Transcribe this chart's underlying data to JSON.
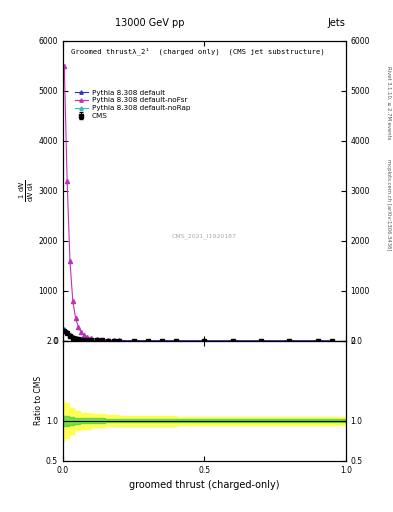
{
  "title_top": "13000 GeV pp",
  "title_right": "Jets",
  "inner_title": "Groomed thrustλ_2¹  (charged only)  (CMS jet substructure)",
  "watermark": "CMS_2021_I1920187",
  "xlabel": "groomed thrust (charged-only)",
  "ylabel_ratio": "Ratio to CMS",
  "right_label_top": "Rivet 3.1.10, ≥ 2.7M events",
  "right_label_bot": "mcplots.cern.ch [arXiv:1306.3436]",
  "legend": [
    {
      "label": "CMS",
      "color": "black",
      "marker": "s",
      "linestyle": "none"
    },
    {
      "label": "Pythia 8.308 default",
      "color": "#3333bb",
      "marker": "^",
      "linestyle": "-"
    },
    {
      "label": "Pythia 8.308 default-noFsr",
      "color": "#bb33bb",
      "marker": "^",
      "linestyle": "-"
    },
    {
      "label": "Pythia 8.308 default-noRap",
      "color": "#33bbbb",
      "marker": "^",
      "linestyle": "-"
    }
  ],
  "main_xdata": [
    0.005,
    0.015,
    0.025,
    0.035,
    0.045,
    0.055,
    0.065,
    0.075,
    0.085,
    0.1,
    0.12,
    0.14,
    0.16,
    0.18,
    0.2,
    0.25,
    0.3,
    0.35,
    0.4,
    0.5,
    0.6,
    0.7,
    0.8,
    0.9,
    0.95
  ],
  "cms_y": [
    200,
    160,
    100,
    65,
    45,
    35,
    26,
    20,
    16,
    13,
    9.5,
    7.5,
    6.0,
    4.8,
    3.9,
    2.7,
    1.9,
    1.4,
    1.0,
    0.55,
    0.25,
    0.1,
    0.04,
    0.01,
    0.005
  ],
  "cms_yerr": [
    12,
    9,
    6,
    4,
    3,
    2.2,
    1.7,
    1.3,
    1.0,
    0.8,
    0.6,
    0.5,
    0.4,
    0.3,
    0.25,
    0.18,
    0.13,
    0.09,
    0.07,
    0.04,
    0.02,
    0.01,
    0.005,
    0.002,
    0.001
  ],
  "py_default_y": [
    220,
    175,
    110,
    72,
    50,
    38,
    28,
    22,
    17.5,
    14,
    10,
    8.0,
    6.3,
    5.0,
    4.0,
    2.8,
    2.0,
    1.45,
    1.05,
    0.58,
    0.27,
    0.11,
    0.045,
    0.012,
    0.006
  ],
  "py_nofsr_y": [
    5500,
    3200,
    1600,
    800,
    450,
    270,
    170,
    110,
    75,
    52,
    33,
    22,
    15,
    11,
    8.0,
    4.5,
    2.8,
    1.8,
    1.2,
    0.62,
    0.28,
    0.11,
    0.045,
    0.012,
    0.006
  ],
  "py_norap_y": [
    230,
    182,
    115,
    75,
    52,
    40,
    30,
    23,
    18,
    14.5,
    10.5,
    8.3,
    6.5,
    5.2,
    4.1,
    2.9,
    2.05,
    1.48,
    1.07,
    0.59,
    0.27,
    0.11,
    0.045,
    0.012,
    0.006
  ],
  "ratio_xdata": [
    0.0,
    0.005,
    0.02,
    0.04,
    0.06,
    0.1,
    0.15,
    0.2,
    0.3,
    0.4,
    0.5,
    0.6,
    0.7,
    0.8,
    0.9,
    1.0
  ],
  "green_band_upper": [
    1.06,
    1.06,
    1.05,
    1.04,
    1.03,
    1.03,
    1.02,
    1.02,
    1.02,
    1.02,
    1.02,
    1.02,
    1.02,
    1.02,
    1.02,
    1.02
  ],
  "green_band_lower": [
    0.94,
    0.94,
    0.95,
    0.96,
    0.97,
    0.97,
    0.98,
    0.98,
    0.98,
    0.98,
    0.98,
    0.98,
    0.98,
    0.98,
    0.98,
    0.98
  ],
  "yellow_band_upper": [
    1.25,
    1.22,
    1.16,
    1.12,
    1.1,
    1.08,
    1.07,
    1.06,
    1.06,
    1.05,
    1.05,
    1.05,
    1.05,
    1.05,
    1.05,
    1.05
  ],
  "yellow_band_lower": [
    0.75,
    0.78,
    0.84,
    0.88,
    0.9,
    0.92,
    0.93,
    0.94,
    0.94,
    0.95,
    0.95,
    0.95,
    0.95,
    0.95,
    0.95,
    0.95
  ],
  "main_ylim": [
    0,
    6000
  ],
  "main_yticks": [
    0,
    1000,
    2000,
    3000,
    4000,
    5000,
    6000
  ],
  "ratio_ylim": [
    0.5,
    2.0
  ],
  "ratio_yticks": [
    0.5,
    1.0,
    2.0
  ],
  "xlim": [
    0,
    1.0
  ],
  "xticks": [
    0.0,
    0.5,
    1.0
  ],
  "background_color": "#ffffff"
}
